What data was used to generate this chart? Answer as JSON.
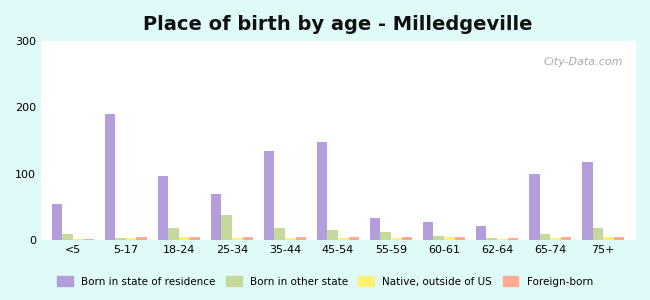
{
  "title": "Place of birth by age - Milledgeville",
  "categories": [
    "<5",
    "5-17",
    "18-24",
    "25-34",
    "35-44",
    "45-54",
    "55-59",
    "60-61",
    "62-64",
    "65-74",
    "75+"
  ],
  "series": {
    "Born in state of residence": [
      55,
      190,
      97,
      70,
      135,
      148,
      33,
      28,
      22,
      100,
      118
    ],
    "Born in other state": [
      10,
      3,
      18,
      38,
      18,
      15,
      12,
      6,
      3,
      10,
      18
    ],
    "Native, outside of US": [
      2,
      3,
      4,
      3,
      3,
      3,
      3,
      4,
      2,
      3,
      4
    ],
    "Foreign-born": [
      2,
      4,
      4,
      5,
      4,
      5,
      4,
      4,
      3,
      4,
      4
    ]
  },
  "colors": {
    "Born in state of residence": "#b39ddb",
    "Born in other state": "#c5d99a",
    "Native, outside of US": "#fff176",
    "Foreign-born": "#ffab91"
  },
  "ylim": [
    0,
    300
  ],
  "yticks": [
    0,
    100,
    200,
    300
  ],
  "background_color": "#e0fafa",
  "plot_bg_start": "#ffffff",
  "plot_bg_end": "#d4edda",
  "watermark": "City-Data.com",
  "bar_width": 0.2,
  "legend_position": "lower center",
  "title_fontsize": 14,
  "tick_fontsize": 8
}
